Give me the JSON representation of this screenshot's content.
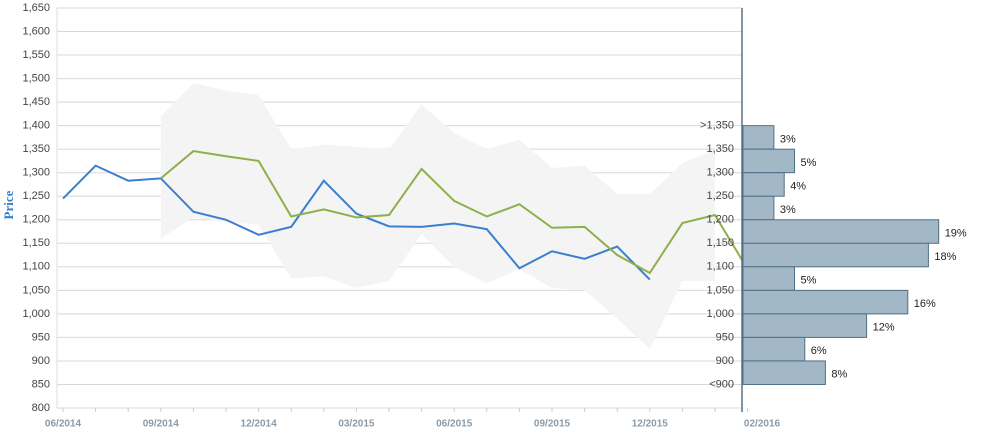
{
  "chart_data": {
    "type": "line",
    "ylabel": "Price",
    "ylim": [
      800,
      1650
    ],
    "yticks": [
      {
        "value": 800,
        "label": "800"
      },
      {
        "value": 850,
        "label": "850"
      },
      {
        "value": 900,
        "label": "900"
      },
      {
        "value": 950,
        "label": "950"
      },
      {
        "value": 1000,
        "label": "1,000"
      },
      {
        "value": 1050,
        "label": "1,050"
      },
      {
        "value": 1100,
        "label": "1,100"
      },
      {
        "value": 1150,
        "label": "1,150"
      },
      {
        "value": 1200,
        "label": "1,200"
      },
      {
        "value": 1250,
        "label": "1,250"
      },
      {
        "value": 1300,
        "label": "1,300"
      },
      {
        "value": 1350,
        "label": "1,350"
      },
      {
        "value": 1400,
        "label": "1,400"
      },
      {
        "value": 1450,
        "label": "1,450"
      },
      {
        "value": 1500,
        "label": "1,500"
      },
      {
        "value": 1550,
        "label": "1,550"
      },
      {
        "value": 1600,
        "label": "1,600"
      },
      {
        "value": 1650,
        "label": "1,650"
      }
    ],
    "grid": true,
    "categories": [
      "06/2014",
      null,
      null,
      "09/2014",
      null,
      null,
      "12/2014",
      null,
      null,
      "03/2015",
      null,
      null,
      "06/2015",
      null,
      null,
      "09/2015",
      null,
      null,
      "12/2015",
      null,
      null,
      null
    ],
    "x_end_label": "02/2016",
    "band": {
      "color": "#f4f4f4",
      "upper": [
        null,
        null,
        null,
        1420,
        1490,
        1475,
        1465,
        1350,
        1360,
        1355,
        1350,
        1445,
        1385,
        1350,
        1370,
        1310,
        1315,
        1255,
        1255,
        1320,
        1350,
        null
      ],
      "lower": [
        null,
        null,
        null,
        1160,
        1205,
        1195,
        1190,
        1075,
        1080,
        1055,
        1070,
        1170,
        1100,
        1065,
        1095,
        1055,
        1050,
        990,
        925,
        1070,
        1070,
        null
      ]
    },
    "series": [
      {
        "color": "#3a7fcf",
        "values": [
          1245,
          1315,
          1283,
          1288,
          1217,
          1200,
          1168,
          1185,
          1283,
          1213,
          1186,
          1185,
          1192,
          1180,
          1097,
          1133,
          1117,
          1143,
          1073,
          null,
          null,
          null
        ]
      },
      {
        "color": "#8db04a",
        "values": [
          null,
          null,
          null,
          1288,
          1346,
          1335,
          1325,
          1207,
          1222,
          1205,
          1210,
          1308,
          1240,
          1207,
          1233,
          1183,
          1185,
          1125,
          1087,
          1193,
          1210,
          1095
        ]
      }
    ],
    "histogram": {
      "type": "bar",
      "color": "#a3b8c6",
      "edge": "#4f6f86",
      "bins": [
        {
          "value": 1400,
          "label": ">1,350"
        },
        {
          "value": 1350,
          "label": "1,350"
        },
        {
          "value": 1300,
          "label": "1,300"
        },
        {
          "value": 1250,
          "label": "1,250"
        },
        {
          "value": 1200,
          "label": "1,200"
        },
        {
          "value": 1150,
          "label": "1,150"
        },
        {
          "value": 1100,
          "label": "1,100"
        },
        {
          "value": 1050,
          "label": "1,050"
        },
        {
          "value": 1000,
          "label": "1,000"
        },
        {
          "value": 950,
          "label": "950"
        },
        {
          "value": 900,
          "label": "900"
        },
        {
          "value": 850,
          "label": "<900"
        }
      ],
      "values": [
        3,
        5,
        4,
        3,
        19,
        18,
        5,
        16,
        12,
        6,
        8
      ],
      "value_labels": [
        "3%",
        "5%",
        "4%",
        "3%",
        "19%",
        "18%",
        "5%",
        "16%",
        "12%",
        "6%",
        "8%"
      ]
    }
  }
}
